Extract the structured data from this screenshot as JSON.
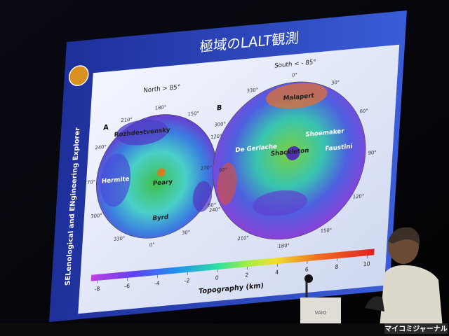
{
  "slide": {
    "title": "極域のLALT観測",
    "side_text": "SELenological and ENgineering Explorer"
  },
  "maps": [
    {
      "letter": "A",
      "title": "North > 85°",
      "longitudes": [
        "180°",
        "150°",
        "120°",
        "90°",
        "60°",
        "30°",
        "0°",
        "330°",
        "300°",
        "270°",
        "240°",
        "210°"
      ],
      "features": [
        "Rozhdestvensky",
        "Hermite",
        "Peary",
        "Byrd"
      ]
    },
    {
      "letter": "B",
      "title": "South < - 85°",
      "longitudes": [
        "0°",
        "30°",
        "60°",
        "90°",
        "120°",
        "150°",
        "180°",
        "210°",
        "240°",
        "270°",
        "300°",
        "330°"
      ],
      "features": [
        "Malapert",
        "De Gerlache",
        "Shoemaker",
        "Shackleton",
        "Faustini"
      ]
    }
  ],
  "colorbar": {
    "ticks": [
      -8,
      -6,
      -4,
      -2,
      0,
      2,
      4,
      6,
      8,
      10
    ],
    "label": "Topography (km)"
  },
  "laptop_brand": "VAIO",
  "watermark": "マイコミジャーナル"
}
